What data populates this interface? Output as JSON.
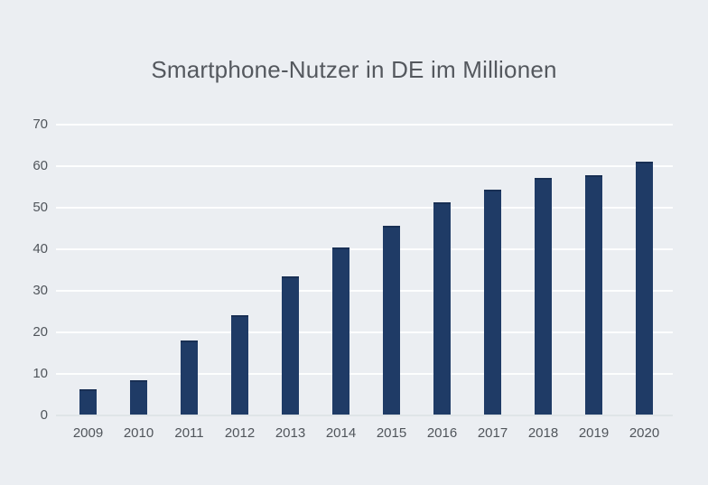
{
  "title": "Smartphone-Nutzer in DE im Millionen",
  "colors": {
    "background": "#ebeef2",
    "bar": "#1f3b66",
    "bar_cap": "#182f54",
    "gridline": "#ffffff",
    "axis_text": "#50555b",
    "title_text": "#54585e"
  },
  "chart_data": {
    "type": "bar",
    "title": "Smartphone-Nutzer in DE im Millionen",
    "categories": [
      "2009",
      "2010",
      "2011",
      "2012",
      "2013",
      "2014",
      "2015",
      "2016",
      "2017",
      "2018",
      "2019",
      "2020"
    ],
    "values": [
      6.3,
      8.4,
      17.9,
      24.0,
      33.4,
      40.4,
      45.6,
      51.1,
      54.2,
      57.1,
      57.8,
      60.9
    ],
    "xlabel": "",
    "ylabel": "",
    "ylim": [
      0,
      70
    ],
    "yticks": [
      0,
      10,
      20,
      30,
      40,
      50,
      60,
      70
    ],
    "grid": true,
    "legend_position": "none"
  }
}
